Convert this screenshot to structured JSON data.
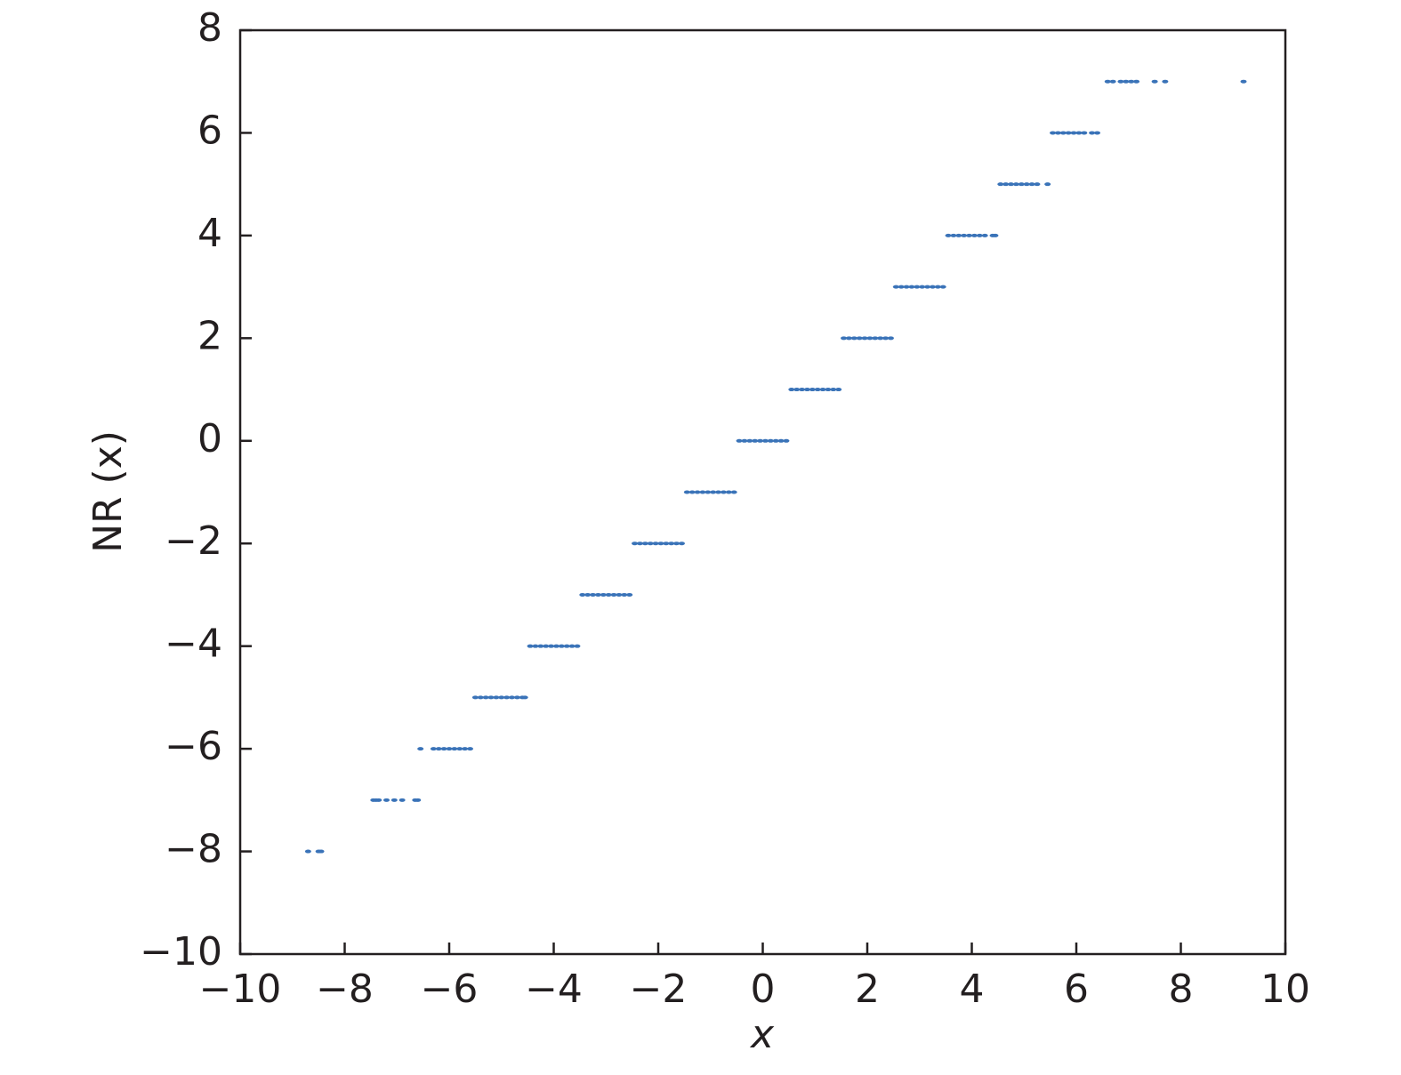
{
  "chart_data": {
    "type": "scatter",
    "x_label": "x",
    "y_label": "NR (x)",
    "color": "#3a73b8",
    "xlim": [
      -10,
      10
    ],
    "ylim": [
      -10,
      8
    ],
    "xticks": [
      {
        "value": -10,
        "label": "−10"
      },
      {
        "value": -8,
        "label": "−8"
      },
      {
        "value": -6,
        "label": "−6"
      },
      {
        "value": -4,
        "label": "−4"
      },
      {
        "value": -2,
        "label": "−2"
      },
      0,
      2,
      4,
      6,
      8,
      10
    ],
    "yticks": [
      {
        "value": -10,
        "label": "−10"
      },
      {
        "value": -8,
        "label": "−8"
      },
      {
        "value": -6,
        "label": "−6"
      },
      {
        "value": -4,
        "label": "−4"
      },
      {
        "value": -2,
        "label": "−2"
      },
      0,
      2,
      4,
      6,
      8
    ],
    "x": [
      -8.7,
      -8.5,
      -8.45,
      -7.45,
      -7.4,
      -7.35,
      -7.2,
      -7.05,
      -6.9,
      -6.65,
      -6.6,
      -6.55,
      -6.3,
      -6.2,
      -6.1,
      -6.0,
      -5.9,
      -5.8,
      -5.7,
      -5.6,
      -5.5,
      -5.4,
      -5.3,
      -5.2,
      -5.1,
      -5.0,
      -4.9,
      -4.8,
      -4.7,
      -4.6,
      -4.55,
      -4.45,
      -4.35,
      -4.25,
      -4.15,
      -4.05,
      -3.95,
      -3.85,
      -3.75,
      -3.65,
      -3.55,
      -3.45,
      -3.35,
      -3.25,
      -3.15,
      -3.05,
      -2.95,
      -2.85,
      -2.75,
      -2.65,
      -2.55,
      -2.45,
      -2.35,
      -2.25,
      -2.15,
      -2.05,
      -1.95,
      -1.85,
      -1.75,
      -1.65,
      -1.55,
      -1.45,
      -1.35,
      -1.25,
      -1.15,
      -1.05,
      -0.95,
      -0.85,
      -0.75,
      -0.65,
      -0.55,
      -0.45,
      -0.35,
      -0.25,
      -0.15,
      -0.05,
      0.05,
      0.15,
      0.25,
      0.35,
      0.45,
      0.55,
      0.65,
      0.75,
      0.85,
      0.95,
      1.05,
      1.15,
      1.25,
      1.35,
      1.45,
      1.55,
      1.65,
      1.75,
      1.85,
      1.95,
      2.05,
      2.15,
      2.25,
      2.35,
      2.45,
      2.55,
      2.65,
      2.75,
      2.85,
      2.95,
      3.05,
      3.15,
      3.25,
      3.35,
      3.45,
      3.55,
      3.65,
      3.75,
      3.85,
      3.95,
      4.05,
      4.15,
      4.25,
      4.4,
      4.45,
      4.55,
      4.65,
      4.75,
      4.85,
      4.95,
      5.05,
      5.15,
      5.25,
      5.45,
      5.55,
      5.65,
      5.75,
      5.85,
      5.95,
      6.05,
      6.15,
      6.3,
      6.4,
      6.6,
      6.7,
      6.85,
      6.95,
      7.05,
      7.15,
      7.5,
      7.7,
      9.2
    ],
    "y": [
      -8,
      -8,
      -8,
      -7,
      -7,
      -7,
      -7,
      -7,
      -7,
      -7,
      -7,
      -6,
      -6,
      -6,
      -6,
      -6,
      -6,
      -6,
      -6,
      -6,
      -5,
      -5,
      -5,
      -5,
      -5,
      -5,
      -5,
      -5,
      -5,
      -5,
      -5,
      -4,
      -4,
      -4,
      -4,
      -4,
      -4,
      -4,
      -4,
      -4,
      -4,
      -3,
      -3,
      -3,
      -3,
      -3,
      -3,
      -3,
      -3,
      -3,
      -3,
      -2,
      -2,
      -2,
      -2,
      -2,
      -2,
      -2,
      -2,
      -2,
      -2,
      -1,
      -1,
      -1,
      -1,
      -1,
      -1,
      -1,
      -1,
      -1,
      -1,
      0,
      0,
      0,
      0,
      0,
      0,
      0,
      0,
      0,
      0,
      1,
      1,
      1,
      1,
      1,
      1,
      1,
      1,
      1,
      1,
      2,
      2,
      2,
      2,
      2,
      2,
      2,
      2,
      2,
      2,
      3,
      3,
      3,
      3,
      3,
      3,
      3,
      3,
      3,
      3,
      4,
      4,
      4,
      4,
      4,
      4,
      4,
      4,
      4,
      4,
      5,
      5,
      5,
      5,
      5,
      5,
      5,
      5,
      5,
      6,
      6,
      6,
      6,
      6,
      6,
      6,
      6,
      6,
      7,
      7,
      7,
      7,
      7,
      7,
      7,
      7,
      7
    ]
  }
}
